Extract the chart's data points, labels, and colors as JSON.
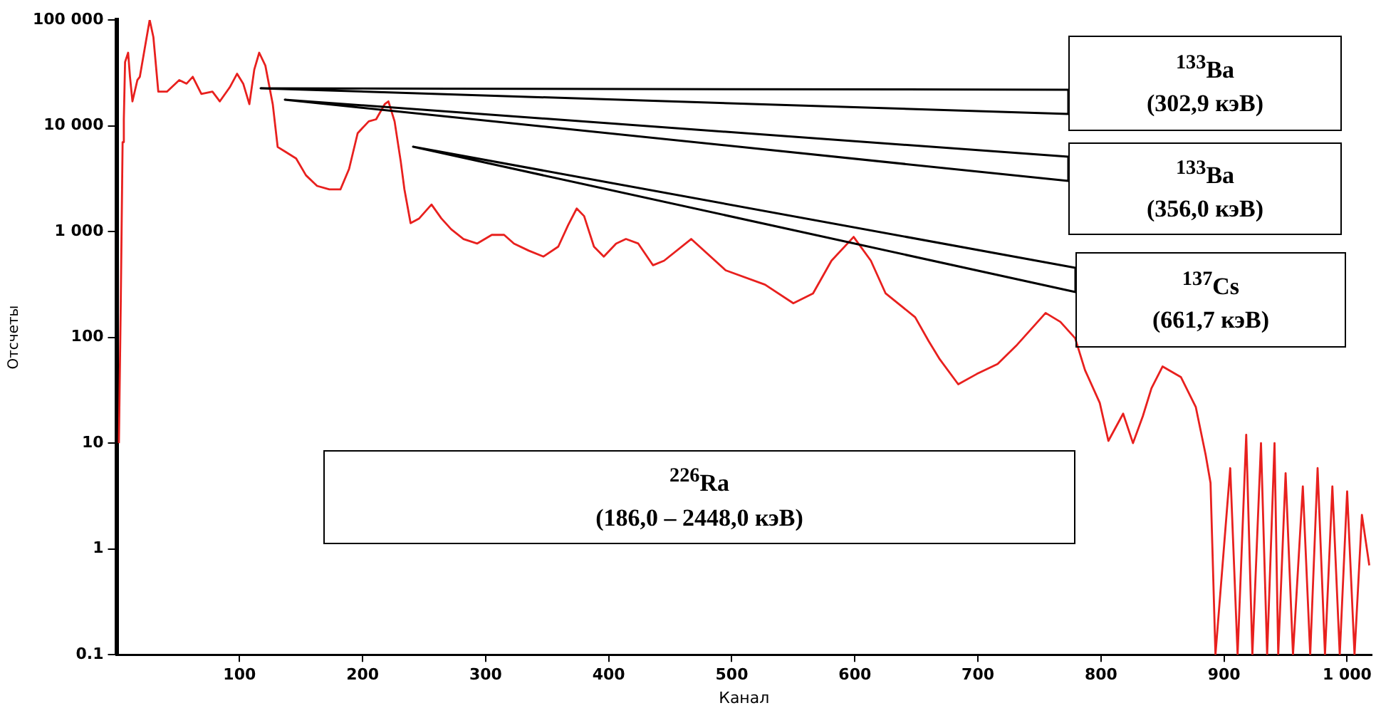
{
  "chart_data": {
    "type": "line",
    "xlabel": "Канал",
    "ylabel": "Отсчеты",
    "log": "y",
    "grid": false,
    "legend": false,
    "marker": "none",
    "line_style": "solid",
    "xlim": [
      0,
      1020
    ],
    "xticks": [
      100,
      200,
      300,
      400,
      500,
      600,
      700,
      800,
      900,
      {
        "value": 1000,
        "label": "1 000"
      }
    ],
    "ylim": [
      0.1,
      100000
    ],
    "yticks": [
      0.1,
      1,
      10,
      100,
      {
        "value": 1000,
        "label": "1 000"
      },
      {
        "value": 10000,
        "label": "10 000"
      },
      {
        "value": 100000,
        "label": "100 000"
      }
    ],
    "annotations": [
      "$^{133}$Ba\n(302,9 кэВ)",
      "$^{133}$Ba\n(356,0 кэВ)",
      "$^{137}$Cs\n(661,7 кэВ)",
      "$^{226}$Ra\n(186,0 – 2448,0 кэВ)"
    ],
    "series": [
      {
        "color": "#e8201e",
        "x": [
          2,
          3.5,
          5,
          6,
          7,
          9.5,
          11,
          13,
          17,
          19,
          24,
          27,
          30,
          34,
          41,
          51,
          57,
          62,
          69,
          78,
          84,
          92,
          98,
          103,
          108,
          112,
          116,
          121,
          127,
          131,
          137,
          146,
          154,
          163,
          173,
          182,
          189,
          196,
          205,
          211,
          218,
          221,
          226,
          231,
          234,
          239,
          246,
          256,
          264,
          272,
          282,
          293,
          305,
          315,
          323,
          335,
          347,
          359,
          367,
          374,
          380,
          388,
          396,
          406,
          414,
          424,
          436,
          445,
          467,
          495,
          527,
          550,
          566,
          581,
          599,
          613,
          625,
          649,
          660,
          669,
          684,
          699,
          716,
          731,
          755,
          767,
          779,
          787,
          799,
          806,
          818,
          826,
          834,
          841,
          850,
          865,
          877,
          885,
          889,
          893,
          905,
          911,
          918,
          923,
          930,
          935,
          941,
          944,
          950,
          956,
          964,
          970,
          976,
          982,
          988,
          994,
          1000,
          1006,
          1012,
          1018
        ],
        "values": [
          10,
          210,
          7000,
          11500,
          40000,
          49000,
          29000,
          17000,
          27000,
          29000,
          63000,
          100000,
          69000,
          21000,
          21000,
          27000,
          25000,
          29000,
          20000,
          21000,
          17000,
          23000,
          31000,
          25000,
          16000,
          34000,
          49000,
          37000,
          16000,
          6300,
          5700,
          4900,
          3400,
          2700,
          2500,
          2500,
          3900,
          8500,
          11000,
          11500,
          16000,
          17000,
          11000,
          4600,
          2500,
          1200,
          1330,
          1800,
          1330,
          1050,
          850,
          770,
          930,
          930,
          770,
          660,
          580,
          720,
          1150,
          1650,
          1400,
          720,
          580,
          770,
          850,
          770,
          480,
          530,
          850,
          430,
          315,
          210,
          260,
          530,
          890,
          530,
          260,
          155,
          92,
          62,
          36,
          45,
          56,
          83,
          170,
          140,
          98,
          49,
          24,
          10.5,
          19,
          10,
          18,
          33,
          53,
          42,
          22,
          7.8,
          4.2,
          0.1,
          5.8,
          0.1,
          12,
          0.1,
          10,
          0.1,
          10,
          0.1,
          5.2,
          0.1,
          3.9,
          0.1,
          5.8,
          0.1,
          3.9,
          0.1,
          3.5,
          0.1,
          2.1,
          0.7
        ]
      }
    ]
  }
}
